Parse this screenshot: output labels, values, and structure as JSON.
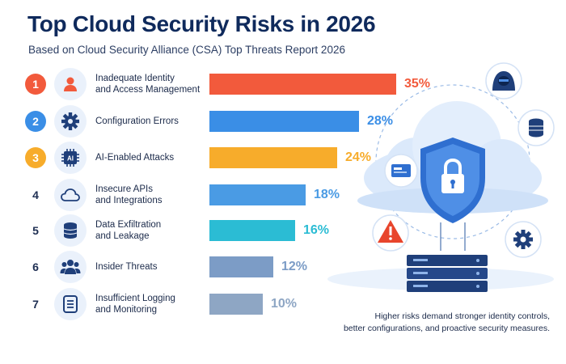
{
  "header": {
    "title": "Top Cloud Security Risks in 2026",
    "subtitle": "Based on Cloud Security Alliance (CSA) Top Threats Report 2026"
  },
  "risks": [
    {
      "rank": "1",
      "label_line1": "Inadequate Identity",
      "label_line2": "and Access Management",
      "pct_label": "35%",
      "icon": "user-icon",
      "color": "#f25a3c",
      "filled_badge": true
    },
    {
      "rank": "2",
      "label_line1": "Configuration Errors",
      "label_line2": "",
      "pct_label": "28%",
      "icon": "gear-icon",
      "color": "#3a8ee6",
      "filled_badge": true
    },
    {
      "rank": "3",
      "label_line1": "AI-Enabled Attacks",
      "label_line2": "",
      "pct_label": "24%",
      "icon": "ai-chip-icon",
      "color": "#f7ac2b",
      "filled_badge": true
    },
    {
      "rank": "4",
      "label_line1": "Insecure APIs",
      "label_line2": "and Integrations",
      "pct_label": "18%",
      "icon": "cloud-icon",
      "color": "#4a9be4",
      "filled_badge": false
    },
    {
      "rank": "5",
      "label_line1": "Data Exfiltration",
      "label_line2": "and Leakage",
      "pct_label": "16%",
      "icon": "database-icon",
      "color": "#2bbcd4",
      "filled_badge": false
    },
    {
      "rank": "6",
      "label_line1": "Insider Threats",
      "label_line2": "",
      "pct_label": "12%",
      "icon": "users-icon",
      "color": "#7c9cc6",
      "filled_badge": false
    },
    {
      "rank": "7",
      "label_line1": "Insufficient Logging",
      "label_line2": "and Monitoring",
      "pct_label": "10%",
      "icon": "log-document-icon",
      "color": "#8ea6c4",
      "filled_badge": false
    }
  ],
  "chart_data": {
    "type": "bar",
    "orientation": "horizontal",
    "title": "Top Cloud Security Risks in 2026",
    "subtitle": "Based on Cloud Security Alliance (CSA) Top Threats Report 2026",
    "categories": [
      "Inadequate Identity and Access Management",
      "Configuration Errors",
      "AI-Enabled Attacks",
      "Insecure APIs and Integrations",
      "Data Exfiltration and Leakage",
      "Insider Threats",
      "Insufficient Logging and Monitoring"
    ],
    "values": [
      35,
      28,
      24,
      18,
      16,
      12,
      10
    ],
    "unit": "%",
    "grid": false,
    "legend": "none"
  },
  "caption": {
    "line1": "Higher risks demand stronger identity controls,",
    "line2": "better configurations, and proactive security measures."
  },
  "illustration": {
    "ai_chip_text": "AI",
    "shield_color": "#2f6fd0",
    "cloud_color": "#d7e7fb",
    "server_color": "#1f3f7a"
  }
}
